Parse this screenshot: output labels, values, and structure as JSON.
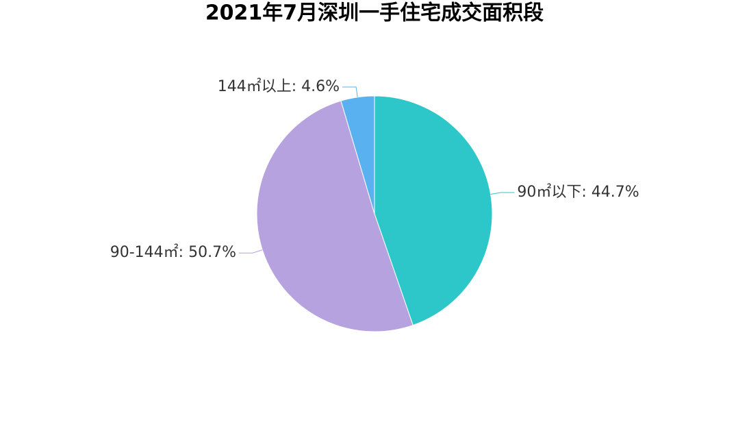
{
  "chart_data": {
    "type": "pie",
    "title": "2021年7月深圳一手住宅成交面积段",
    "values": [
      44.7,
      50.7,
      4.6
    ],
    "value_labels": [
      "90㎡以下: 44.7%",
      "90-144㎡: 50.7%",
      "144㎡以上: 4.6%"
    ],
    "colors": [
      "#2ec7c9",
      "#b6a2de",
      "#5ab1ef"
    ]
  }
}
